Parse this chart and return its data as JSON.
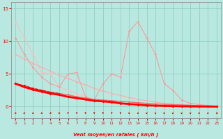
{
  "bg_color": "#b8e8e0",
  "grid_color": "#88ccbb",
  "xlabel": "Vent moyen/en rafales ( km/h )",
  "ylim": [
    -1.8,
    16
  ],
  "xlim": [
    -0.5,
    23.5
  ],
  "yticks": [
    0,
    5,
    10,
    15
  ],
  "xticks": [
    0,
    1,
    2,
    3,
    4,
    5,
    6,
    7,
    8,
    9,
    10,
    11,
    12,
    13,
    14,
    15,
    16,
    17,
    18,
    19,
    20,
    21,
    22,
    23
  ],
  "series": [
    {
      "x": [
        0,
        1,
        2,
        3,
        4,
        5,
        6,
        7,
        8,
        9,
        10,
        11,
        12,
        13,
        14,
        15,
        16,
        17,
        18,
        19,
        20,
        21,
        22,
        23
      ],
      "y": [
        13.0,
        10.5,
        8.0,
        5.2,
        5.0,
        3.0,
        2.5,
        2.0,
        1.5,
        1.0,
        0.8,
        0.5,
        0.4,
        0.3,
        0.2,
        0.15,
        0.1,
        0.08,
        0.05,
        0.03,
        0.02,
        0.01,
        0.01,
        0.0
      ],
      "color": "#ffbbbb",
      "lw": 0.8,
      "marker": "D",
      "ms": 1.8,
      "ls": "-"
    },
    {
      "x": [
        0,
        1,
        2,
        3,
        4,
        5,
        6,
        7,
        8,
        9,
        10,
        11,
        12,
        13,
        14,
        15,
        16,
        17,
        18,
        19,
        20,
        21,
        22,
        23
      ],
      "y": [
        10.5,
        8.0,
        6.0,
        4.5,
        3.5,
        3.0,
        5.0,
        5.2,
        1.5,
        1.0,
        3.5,
        5.0,
        4.5,
        11.5,
        13.0,
        10.5,
        8.0,
        3.5,
        2.5,
        1.0,
        0.5,
        0.3,
        0.2,
        0.1
      ],
      "color": "#ff9999",
      "lw": 0.8,
      "marker": "D",
      "ms": 1.8,
      "ls": "-"
    },
    {
      "x": [
        0,
        1,
        2,
        3,
        4,
        5,
        6,
        7,
        8,
        9,
        10,
        11,
        12,
        13,
        14,
        15,
        16,
        17,
        18,
        19,
        20,
        21,
        22,
        23
      ],
      "y": [
        8.0,
        7.3,
        6.6,
        6.0,
        5.4,
        4.8,
        4.3,
        3.8,
        3.3,
        2.8,
        2.4,
        2.0,
        1.7,
        1.4,
        1.1,
        0.9,
        0.7,
        0.5,
        0.4,
        0.3,
        0.2,
        0.15,
        0.1,
        0.05
      ],
      "color": "#ffaaaa",
      "lw": 0.8,
      "marker": "D",
      "ms": 1.8,
      "ls": "-"
    },
    {
      "x": [
        0,
        1,
        2,
        3,
        4,
        5,
        6,
        7,
        8,
        9,
        10,
        11,
        12,
        13,
        14,
        15,
        16,
        17,
        18,
        19,
        20,
        21,
        22,
        23
      ],
      "y": [
        3.5,
        3.2,
        2.8,
        2.5,
        2.2,
        2.0,
        1.8,
        1.5,
        1.3,
        1.1,
        1.0,
        0.9,
        0.8,
        0.7,
        0.6,
        0.5,
        0.4,
        0.35,
        0.3,
        0.25,
        0.2,
        0.15,
        0.1,
        0.05
      ],
      "color": "#ff6666",
      "lw": 1.0,
      "marker": "D",
      "ms": 1.8,
      "ls": "-"
    },
    {
      "x": [
        0,
        1,
        2,
        3,
        4,
        5
      ],
      "y": [
        3.5,
        3.2,
        2.8,
        2.5,
        2.2,
        2.0
      ],
      "color": "#cc0000",
      "lw": 0.8,
      "marker": "D",
      "ms": 1.5,
      "ls": "--"
    },
    {
      "x": [
        0,
        1,
        2,
        3,
        4,
        5,
        6,
        7,
        8,
        9,
        10,
        11,
        12,
        13,
        14,
        15,
        16,
        17,
        18,
        19,
        20,
        21,
        22,
        23
      ],
      "y": [
        3.5,
        3.0,
        2.6,
        2.3,
        2.0,
        1.8,
        1.5,
        1.3,
        1.1,
        0.9,
        0.8,
        0.7,
        0.5,
        0.4,
        0.3,
        0.2,
        0.15,
        0.1,
        0.08,
        0.05,
        0.03,
        0.02,
        0.01,
        0.0
      ],
      "color": "#ff0000",
      "lw": 2.0,
      "marker": "D",
      "ms": 2.0,
      "ls": "-"
    }
  ],
  "arrows": {
    "x": [
      0,
      1,
      2,
      3,
      4,
      5,
      6,
      7,
      8,
      9,
      10,
      11,
      12,
      13,
      14,
      15,
      16,
      17,
      18,
      19,
      20,
      21,
      22,
      23
    ],
    "dx": [
      -0.25,
      -0.25,
      -0.25,
      -0.25,
      -0.25,
      -0.25,
      0.0,
      0.0,
      0.0,
      0.0,
      0.0,
      0.0,
      0.0,
      0.25,
      0.25,
      0.25,
      0.25,
      0.25,
      0.25,
      0.25,
      0.25,
      0.25,
      0.25,
      0.35
    ],
    "dy": [
      -0.25,
      -0.25,
      -0.25,
      -0.25,
      -0.25,
      -0.25,
      -0.35,
      -0.35,
      -0.35,
      -0.35,
      -0.35,
      -0.35,
      -0.35,
      0.25,
      0.25,
      0.25,
      0.25,
      0.25,
      0.25,
      0.25,
      0.25,
      0.25,
      0.25,
      0.0
    ]
  }
}
